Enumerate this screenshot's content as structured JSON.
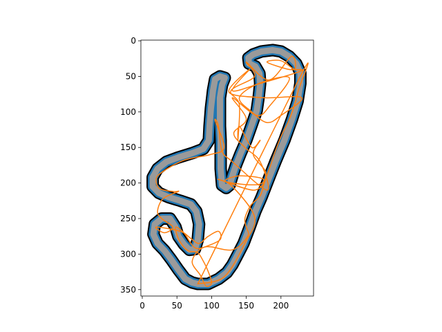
{
  "chart_data": {
    "type": "line",
    "title": "",
    "xlabel": "",
    "ylabel": "",
    "xlim": [
      -2,
      247
    ],
    "ylim": [
      359,
      -1
    ],
    "x_ticks": [
      0,
      50,
      100,
      150,
      200
    ],
    "y_ticks": [
      0,
      50,
      100,
      150,
      200,
      250,
      300,
      350
    ],
    "x_tick_labels": [
      "0",
      "50",
      "100",
      "150",
      "200"
    ],
    "y_tick_labels": [
      "0",
      "50",
      "100",
      "150",
      "200",
      "250",
      "300",
      "350"
    ],
    "grid": false,
    "colors": {
      "track_fill": "#9a9a9a",
      "track_edge": "#1f77b4",
      "track_outline": "#000000",
      "trajectory": "#ff7f0e"
    },
    "series": [
      {
        "kind": "track-centerline",
        "points": [
          [
            80,
            342
          ],
          [
            95,
            342
          ],
          [
            110,
            335
          ],
          [
            122,
            326
          ],
          [
            130,
            315
          ],
          [
            138,
            300
          ],
          [
            146,
            285
          ],
          [
            155,
            262
          ],
          [
            163,
            240
          ],
          [
            172,
            220
          ],
          [
            182,
            195
          ],
          [
            192,
            170
          ],
          [
            205,
            140
          ],
          [
            216,
            110
          ],
          [
            224,
            85
          ],
          [
            228,
            60
          ],
          [
            228,
            45
          ],
          [
            222,
            32
          ],
          [
            212,
            22
          ],
          [
            200,
            15
          ],
          [
            188,
            13
          ],
          [
            172,
            15
          ],
          [
            160,
            19
          ],
          [
            153,
            24
          ],
          [
            154,
            32
          ],
          [
            163,
            36
          ],
          [
            169,
            46
          ],
          [
            170,
            60
          ],
          [
            168,
            78
          ],
          [
            165,
            98
          ],
          [
            158,
            118
          ],
          [
            150,
            140
          ],
          [
            142,
            158
          ],
          [
            135,
            175
          ],
          [
            130,
            190
          ],
          [
            126,
            203
          ],
          [
            121,
            207
          ],
          [
            115,
            203
          ],
          [
            113,
            180
          ],
          [
            113,
            160
          ],
          [
            113,
            140
          ],
          [
            112,
            120
          ],
          [
            112,
            100
          ],
          [
            112,
            80
          ],
          [
            115,
            62
          ],
          [
            119,
            52
          ],
          [
            112,
            50
          ],
          [
            105,
            54
          ],
          [
            102,
            70
          ],
          [
            99,
            95
          ],
          [
            97,
            120
          ],
          [
            96,
            140
          ],
          [
            88,
            152
          ],
          [
            72,
            158
          ],
          [
            52,
            164
          ],
          [
            35,
            170
          ],
          [
            22,
            180
          ],
          [
            15,
            192
          ],
          [
            15,
            205
          ],
          [
            24,
            214
          ],
          [
            38,
            220
          ],
          [
            55,
            225
          ],
          [
            70,
            230
          ],
          [
            78,
            240
          ],
          [
            82,
            258
          ],
          [
            80,
            280
          ],
          [
            76,
            293
          ],
          [
            68,
            294
          ],
          [
            60,
            286
          ],
          [
            52,
            275
          ],
          [
            48,
            262
          ],
          [
            40,
            250
          ],
          [
            28,
            250
          ],
          [
            18,
            258
          ],
          [
            16,
            272
          ],
          [
            22,
            285
          ],
          [
            32,
            295
          ],
          [
            42,
            308
          ],
          [
            52,
            322
          ],
          [
            62,
            335
          ],
          [
            72,
            340
          ],
          [
            80,
            342
          ]
        ]
      },
      {
        "kind": "trajectory",
        "points": [
          [
            80,
            342
          ],
          [
            118,
            332
          ],
          [
            148,
            285
          ],
          [
            162,
            248
          ],
          [
            130,
            205
          ],
          [
            110,
            195
          ],
          [
            160,
            210
          ],
          [
            175,
            195
          ],
          [
            140,
            190
          ],
          [
            120,
            198
          ],
          [
            168,
            202
          ],
          [
            178,
            185
          ],
          [
            160,
            160
          ],
          [
            170,
            140
          ],
          [
            158,
            150
          ],
          [
            140,
            120
          ],
          [
            138,
            140
          ],
          [
            140,
            90
          ],
          [
            128,
            70
          ],
          [
            162,
            50
          ],
          [
            150,
            30
          ],
          [
            183,
            55
          ],
          [
            215,
            22
          ],
          [
            220,
            40
          ],
          [
            200,
            28
          ],
          [
            180,
            30
          ],
          [
            210,
            40
          ],
          [
            230,
            42
          ],
          [
            170,
            60
          ],
          [
            130,
            70
          ],
          [
            155,
            40
          ],
          [
            125,
            72
          ],
          [
            175,
            80
          ],
          [
            230,
            80
          ],
          [
            200,
            105
          ],
          [
            180,
            115
          ],
          [
            158,
            100
          ],
          [
            140,
            80
          ],
          [
            168,
            60
          ],
          [
            212,
            52
          ],
          [
            185,
            90
          ],
          [
            165,
            105
          ],
          [
            130,
            80
          ],
          [
            150,
            110
          ],
          [
            132,
            130
          ],
          [
            148,
            150
          ],
          [
            170,
            170
          ],
          [
            180,
            210
          ],
          [
            130,
            170
          ],
          [
            115,
            155
          ],
          [
            110,
            120
          ],
          [
            105,
            112
          ],
          [
            118,
            150
          ],
          [
            98,
            160
          ],
          [
            60,
            168
          ],
          [
            28,
            185
          ],
          [
            20,
            195
          ],
          [
            25,
            208
          ],
          [
            45,
            212
          ],
          [
            52,
            212
          ],
          [
            30,
            222
          ],
          [
            22,
            240
          ],
          [
            28,
            250
          ],
          [
            44,
            262
          ],
          [
            32,
            270
          ],
          [
            20,
            262
          ],
          [
            55,
            268
          ],
          [
            70,
            278
          ],
          [
            82,
            285
          ],
          [
            95,
            275
          ],
          [
            110,
            268
          ],
          [
            112,
            280
          ],
          [
            90,
            290
          ],
          [
            78,
            292
          ],
          [
            70,
            285
          ],
          [
            60,
            270
          ],
          [
            48,
            262
          ],
          [
            52,
            278
          ],
          [
            60,
            290
          ],
          [
            68,
            296
          ],
          [
            80,
            298
          ],
          [
            88,
            310
          ],
          [
            94,
            322
          ],
          [
            100,
            340
          ],
          [
            92,
            345
          ],
          [
            84,
            330
          ],
          [
            72,
            310
          ],
          [
            90,
            290
          ],
          [
            130,
            294
          ],
          [
            152,
            275
          ],
          [
            150,
            262
          ],
          [
            148,
            250
          ],
          [
            156,
            232
          ],
          [
            170,
            218
          ],
          [
            176,
            200
          ],
          [
            185,
            175
          ],
          [
            192,
            155
          ],
          [
            200,
            135
          ],
          [
            210,
            115
          ],
          [
            218,
            95
          ],
          [
            225,
            70
          ],
          [
            229,
            48
          ],
          [
            80,
            342
          ]
        ]
      }
    ]
  }
}
